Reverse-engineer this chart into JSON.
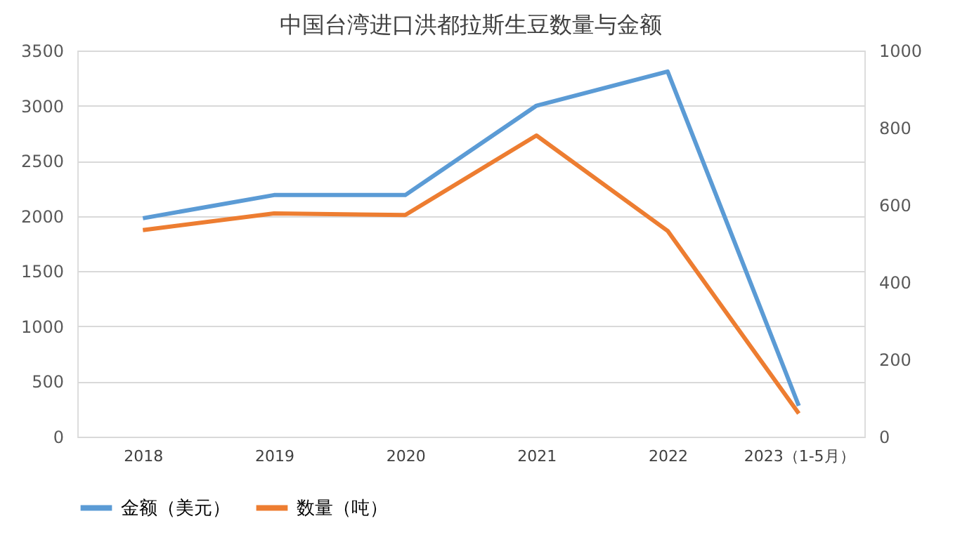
{
  "chart_data": {
    "type": "line",
    "title": "中国台湾进口洪都拉斯生豆数量与金额",
    "categories": [
      "2018",
      "2019",
      "2020",
      "2021",
      "2022",
      "2023（1-5月）"
    ],
    "series": [
      {
        "name": "金额（美元）",
        "color": "#5b9bd5",
        "values": [
          1980,
          2190,
          2190,
          3000,
          3310,
          280
        ]
      },
      {
        "name": "数量（吨）",
        "color": "#ed7d31",
        "axis": "y2",
        "values": [
          535,
          578,
          574,
          780,
          533,
          60
        ]
      }
    ],
    "ylim": [
      0,
      3500
    ],
    "yticks": [
      0,
      500,
      1000,
      1500,
      2000,
      2500,
      3000,
      3500
    ],
    "y2lim": [
      0,
      1000
    ],
    "y2ticks": [
      0,
      200,
      400,
      600,
      800,
      1000
    ],
    "grid": "y",
    "legend": "bottom",
    "marker": "none",
    "line_style": "solid"
  }
}
